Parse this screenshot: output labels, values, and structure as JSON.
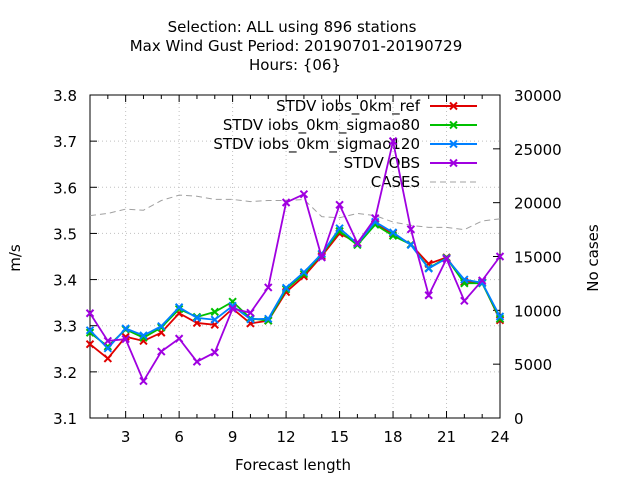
{
  "chart_data": {
    "type": "line",
    "title_lines": [
      "Selection: ALL using   896 stations",
      "Max Wind Gust   Period: 20190701-20190729",
      "Hours: {06}"
    ],
    "xlabel": "Forecast length",
    "ylabel": "m/s",
    "y2label": "No cases",
    "xlim": [
      1,
      24
    ],
    "ylim": [
      3.1,
      3.8
    ],
    "y2lim": [
      0,
      30000
    ],
    "xticks": [
      3,
      6,
      9,
      12,
      15,
      18,
      21,
      24
    ],
    "yticks": [
      3.1,
      3.2,
      3.3,
      3.4,
      3.5,
      3.6,
      3.7,
      3.8
    ],
    "y2ticks": [
      0,
      5000,
      10000,
      15000,
      20000,
      25000,
      30000
    ],
    "ytick_labels": [
      "3.1",
      "3.2",
      "3.3",
      "3.4",
      "3.5",
      "3.6",
      "3.7",
      "3.8"
    ],
    "legend_position": "top-right",
    "x": [
      1,
      2,
      3,
      4,
      5,
      6,
      7,
      8,
      9,
      10,
      11,
      12,
      13,
      14,
      15,
      16,
      17,
      18,
      19,
      20,
      21,
      22,
      23,
      24
    ],
    "series": [
      {
        "name": "STDV iobs_0km_ref",
        "color": "#e00000",
        "marker": "x",
        "axis": "y",
        "values": [
          3.26,
          3.229,
          3.276,
          3.267,
          3.285,
          3.327,
          3.306,
          3.302,
          3.337,
          3.305,
          3.311,
          3.373,
          3.407,
          3.451,
          3.5,
          3.48,
          3.52,
          3.5,
          3.476,
          3.434,
          3.448,
          3.395,
          3.394,
          3.312
        ]
      },
      {
        "name": "STDV iobs_0km_sigmao80",
        "color": "#00c000",
        "marker": "x",
        "axis": "y",
        "values": [
          3.285,
          3.255,
          3.292,
          3.274,
          3.296,
          3.336,
          3.319,
          3.33,
          3.352,
          3.316,
          3.311,
          3.379,
          3.412,
          3.455,
          3.505,
          3.475,
          3.519,
          3.495,
          3.476,
          3.425,
          3.447,
          3.392,
          3.392,
          3.315
        ]
      },
      {
        "name": "STDV iobs_0km_sigmao120",
        "color": "#0080ff",
        "marker": "x",
        "axis": "y",
        "values": [
          3.29,
          3.251,
          3.294,
          3.279,
          3.299,
          3.34,
          3.317,
          3.313,
          3.343,
          3.314,
          3.315,
          3.382,
          3.416,
          3.456,
          3.511,
          3.478,
          3.525,
          3.502,
          3.475,
          3.424,
          3.446,
          3.4,
          3.393,
          3.32
        ]
      },
      {
        "name": "STDV OBS",
        "color": "#a000e0",
        "marker": "x",
        "axis": "y",
        "values": [
          3.327,
          3.267,
          3.271,
          3.18,
          3.244,
          3.272,
          3.222,
          3.242,
          3.337,
          3.328,
          3.383,
          3.567,
          3.585,
          3.448,
          3.562,
          3.479,
          3.533,
          3.7,
          3.509,
          3.366,
          3.445,
          3.354,
          3.398,
          3.45
        ]
      },
      {
        "name": "CASES",
        "color": "#a0a0a0",
        "dash": true,
        "axis": "y2",
        "values": [
          18800,
          19000,
          19400,
          19300,
          20200,
          20700,
          20600,
          20300,
          20300,
          20100,
          20200,
          20200,
          20300,
          18700,
          18600,
          19000,
          18800,
          18200,
          17900,
          17700,
          17700,
          17500,
          18300,
          18500
        ]
      }
    ]
  }
}
